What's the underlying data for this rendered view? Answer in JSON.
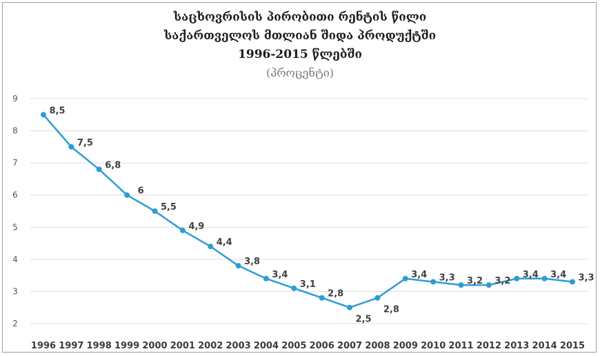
{
  "chart_data": {
    "type": "line",
    "title_lines": [
      "საცხოვრისის პირობითი რენტის წილი",
      "საქართველოს მთლიან შიდა პროდუქტში",
      "1996-2015 წლებში"
    ],
    "subtitle": "(პროცენტი)",
    "xlabel": "",
    "ylabel": "",
    "categories": [
      "1996",
      "1997",
      "1998",
      "1999",
      "2000",
      "2001",
      "2002",
      "2003",
      "2004",
      "2005",
      "2006",
      "2007",
      "2008",
      "2009",
      "2010",
      "2011",
      "2012",
      "2013",
      "2014",
      "2015"
    ],
    "values": [
      8.5,
      7.5,
      6.8,
      6,
      5.5,
      4.9,
      4.4,
      3.8,
      3.4,
      3.1,
      2.8,
      2.5,
      2.8,
      3.4,
      3.3,
      3.2,
      3.2,
      3.4,
      3.4,
      3.3
    ],
    "data_labels": [
      "8,5",
      "7,5",
      "6,8",
      "6",
      "5,5",
      "4,9",
      "4,4",
      "3,8",
      "3,4",
      "3,1",
      "2,8",
      "2,5",
      "2,8",
      "3,4",
      "3,3",
      "3,2",
      "3,2",
      "3,4",
      "3,4",
      "3,3"
    ],
    "y_ticks": [
      "2",
      "3",
      "4",
      "5",
      "6",
      "7",
      "8",
      "9"
    ],
    "ylim": [
      2,
      9
    ],
    "grid": true,
    "legend": "none",
    "line_color": "#2e9bd6"
  }
}
